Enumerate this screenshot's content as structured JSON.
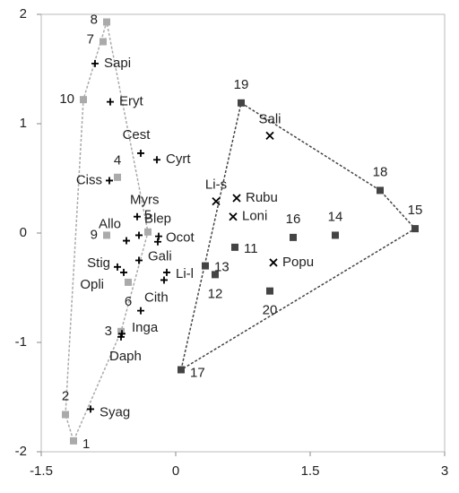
{
  "chart_data": {
    "type": "scatter",
    "xlim": [
      -1.5,
      3
    ],
    "xticks": [
      -1.5,
      0,
      1.5,
      3
    ],
    "ylim": [
      -2,
      2
    ],
    "yticks": [
      -2,
      -1,
      0,
      1,
      2
    ],
    "series": [
      {
        "marker": "square",
        "color": "#aaaaaa",
        "hull": true,
        "labels": [
          "8",
          "7",
          "10",
          "4",
          "9",
          "5",
          "6",
          "3",
          "2",
          "1"
        ],
        "x": [
          -0.77,
          -0.81,
          -1.03,
          -0.65,
          -0.77,
          -0.31,
          -0.53,
          -0.61,
          -1.23,
          -1.14
        ],
        "y": [
          1.93,
          1.75,
          1.22,
          0.51,
          -0.02,
          0.01,
          -0.45,
          -0.9,
          -1.66,
          -1.9
        ]
      },
      {
        "marker": "square",
        "color": "#444444",
        "hull": true,
        "labels": [
          "19",
          "18",
          "15",
          "14",
          "16",
          "11",
          "13",
          "12",
          "20",
          "17"
        ],
        "x": [
          0.73,
          2.28,
          2.67,
          1.78,
          1.31,
          0.66,
          0.33,
          0.44,
          1.05,
          0.06
        ],
        "y": [
          1.19,
          0.39,
          0.04,
          -0.02,
          -0.04,
          -0.13,
          -0.3,
          -0.38,
          -0.53,
          -1.25
        ]
      },
      {
        "marker": "plus",
        "color": "#000000",
        "labels": [
          "Sapi",
          "Eryt",
          "Cest",
          "Cyrt",
          "Ciss",
          "Myrs",
          "Allo",
          "Blep",
          "Ocot",
          null,
          "Stig",
          "Opli",
          "Gali",
          "Li-l",
          null,
          "Cith",
          "Inga",
          "Daph",
          "Syag"
        ],
        "x": [
          -0.9,
          -0.73,
          -0.39,
          -0.21,
          -0.74,
          -0.43,
          -0.55,
          -0.41,
          -0.19,
          -0.2,
          -0.65,
          -0.58,
          -0.41,
          -0.1,
          -0.13,
          -0.39,
          -0.61,
          -0.6,
          -0.95
        ],
        "y": [
          1.55,
          1.2,
          0.73,
          0.67,
          0.48,
          0.15,
          -0.07,
          -0.02,
          -0.03,
          -0.08,
          -0.31,
          -0.36,
          -0.25,
          -0.36,
          -0.43,
          -0.71,
          -0.95,
          -0.92,
          -1.61
        ]
      },
      {
        "marker": "x",
        "color": "#000000",
        "labels": [
          "Sali",
          "Li-s",
          "Rubu",
          "Loni",
          "Popu"
        ],
        "x": [
          1.05,
          0.45,
          0.68,
          0.64,
          1.09
        ],
        "y": [
          0.89,
          0.29,
          0.32,
          0.15,
          -0.27
        ]
      }
    ]
  }
}
